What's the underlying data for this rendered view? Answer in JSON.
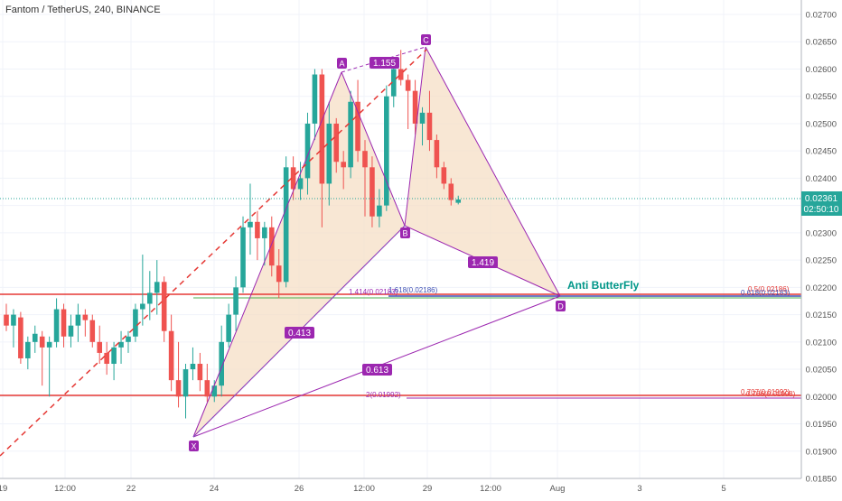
{
  "header": {
    "title": "Fantom / TetherUS, 240, BINANCE"
  },
  "price_axis": {
    "ticks": [
      "0.02700",
      "0.02650",
      "0.02600",
      "0.02550",
      "0.02500",
      "0.02450",
      "0.02400",
      "0.02350",
      "0.02300",
      "0.02250",
      "0.02200",
      "0.02150",
      "0.02100",
      "0.02050",
      "0.02000",
      "0.01950",
      "0.01900",
      "0.01850"
    ],
    "last_price": "0.02361",
    "countdown": "02:50:10"
  },
  "time_axis": {
    "ticks": [
      "19",
      "12:00",
      "22",
      "24",
      "26",
      "12:00",
      "29",
      "12:00",
      "Aug",
      "3",
      "5"
    ]
  },
  "pattern": {
    "name": "Anti ButterFly",
    "points": [
      "X",
      "A",
      "B",
      "C",
      "D"
    ],
    "ratios": [
      "1.155",
      "0.413",
      "0.613",
      "1.419"
    ]
  },
  "levels": {
    "fib_upper_left": "1.414(0.02183)",
    "fib_upper_mid": "1.618(0.02186)",
    "fib_upper_right_a": "0.5(0.02186)",
    "fib_upper_right_b": "0.618(0.02183)",
    "fib_lower_mid": "2(0.01992)",
    "fib_lower_right_a": "0.707(0.01992)",
    "fib_lower_right_b": "0.786(0.01998)"
  },
  "colors": {
    "up": "#26a69a",
    "down": "#ef5350",
    "pattern": "#9c27b0",
    "pattern_fill": "#f6dfc6",
    "level_red": "#e53935",
    "level_blue": "#3f51b5",
    "level_green": "#4caf50",
    "text_green": "#009688"
  },
  "chart_data": {
    "type": "candlestick",
    "title": "Fantom / TetherUS, 240, BINANCE",
    "ylim": [
      0.0184,
      0.0273
    ],
    "candles": [
      {
        "i": 0,
        "o": 0.0215,
        "h": 0.0217,
        "l": 0.0212,
        "c": 0.0213
      },
      {
        "i": 1,
        "o": 0.0213,
        "h": 0.0216,
        "l": 0.0209,
        "c": 0.0215
      },
      {
        "i": 2,
        "o": 0.02145,
        "h": 0.02155,
        "l": 0.0206,
        "c": 0.0207
      },
      {
        "i": 3,
        "o": 0.0207,
        "h": 0.0211,
        "l": 0.0205,
        "c": 0.021
      },
      {
        "i": 4,
        "o": 0.021,
        "h": 0.0213,
        "l": 0.0208,
        "c": 0.02115
      },
      {
        "i": 5,
        "o": 0.0211,
        "h": 0.0212,
        "l": 0.0202,
        "c": 0.0209
      },
      {
        "i": 6,
        "o": 0.0209,
        "h": 0.0211,
        "l": 0.02,
        "c": 0.021
      },
      {
        "i": 7,
        "o": 0.021,
        "h": 0.0218,
        "l": 0.0209,
        "c": 0.0216
      },
      {
        "i": 8,
        "o": 0.0216,
        "h": 0.0217,
        "l": 0.0209,
        "c": 0.0211
      },
      {
        "i": 9,
        "o": 0.0211,
        "h": 0.0215,
        "l": 0.0209,
        "c": 0.0213
      },
      {
        "i": 10,
        "o": 0.0213,
        "h": 0.0217,
        "l": 0.021,
        "c": 0.0215
      },
      {
        "i": 11,
        "o": 0.0215,
        "h": 0.0216,
        "l": 0.0211,
        "c": 0.0214
      },
      {
        "i": 12,
        "o": 0.0214,
        "h": 0.0215,
        "l": 0.0209,
        "c": 0.021
      },
      {
        "i": 13,
        "o": 0.021,
        "h": 0.0213,
        "l": 0.0206,
        "c": 0.0208
      },
      {
        "i": 14,
        "o": 0.0208,
        "h": 0.021,
        "l": 0.0204,
        "c": 0.0206
      },
      {
        "i": 15,
        "o": 0.0206,
        "h": 0.021,
        "l": 0.0203,
        "c": 0.0209
      },
      {
        "i": 16,
        "o": 0.0209,
        "h": 0.0212,
        "l": 0.0206,
        "c": 0.021
      },
      {
        "i": 17,
        "o": 0.021,
        "h": 0.0212,
        "l": 0.0208,
        "c": 0.0211
      },
      {
        "i": 18,
        "o": 0.0211,
        "h": 0.0217,
        "l": 0.021,
        "c": 0.0216
      },
      {
        "i": 19,
        "o": 0.0216,
        "h": 0.0226,
        "l": 0.0213,
        "c": 0.0217
      },
      {
        "i": 20,
        "o": 0.0217,
        "h": 0.0223,
        "l": 0.0214,
        "c": 0.0219
      },
      {
        "i": 21,
        "o": 0.0219,
        "h": 0.0225,
        "l": 0.0215,
        "c": 0.0221
      },
      {
        "i": 22,
        "o": 0.0221,
        "h": 0.0222,
        "l": 0.021,
        "c": 0.0212
      },
      {
        "i": 23,
        "o": 0.0212,
        "h": 0.0215,
        "l": 0.0201,
        "c": 0.0203
      },
      {
        "i": 24,
        "o": 0.0203,
        "h": 0.021,
        "l": 0.0198,
        "c": 0.02
      },
      {
        "i": 25,
        "o": 0.02,
        "h": 0.0206,
        "l": 0.0196,
        "c": 0.0205
      },
      {
        "i": 26,
        "o": 0.0205,
        "h": 0.0209,
        "l": 0.0203,
        "c": 0.0206
      },
      {
        "i": 27,
        "o": 0.0206,
        "h": 0.0208,
        "l": 0.0201,
        "c": 0.0203
      },
      {
        "i": 28,
        "o": 0.0203,
        "h": 0.0206,
        "l": 0.0199,
        "c": 0.02
      },
      {
        "i": 29,
        "o": 0.02,
        "h": 0.0203,
        "l": 0.0199,
        "c": 0.0202
      },
      {
        "i": 30,
        "o": 0.0202,
        "h": 0.0213,
        "l": 0.02,
        "c": 0.021
      },
      {
        "i": 31,
        "o": 0.021,
        "h": 0.0217,
        "l": 0.0209,
        "c": 0.0215
      },
      {
        "i": 32,
        "o": 0.0215,
        "h": 0.0222,
        "l": 0.0212,
        "c": 0.022
      },
      {
        "i": 33,
        "o": 0.022,
        "h": 0.0233,
        "l": 0.0219,
        "c": 0.0231
      },
      {
        "i": 34,
        "o": 0.0231,
        "h": 0.0239,
        "l": 0.0226,
        "c": 0.0232
      },
      {
        "i": 35,
        "o": 0.0232,
        "h": 0.0234,
        "l": 0.0225,
        "c": 0.0229
      },
      {
        "i": 36,
        "o": 0.0229,
        "h": 0.0232,
        "l": 0.0224,
        "c": 0.0231
      },
      {
        "i": 37,
        "o": 0.0231,
        "h": 0.0233,
        "l": 0.0222,
        "c": 0.0224
      },
      {
        "i": 38,
        "o": 0.0224,
        "h": 0.0227,
        "l": 0.0218,
        "c": 0.0221
      },
      {
        "i": 39,
        "o": 0.0221,
        "h": 0.0244,
        "l": 0.022,
        "c": 0.0242
      },
      {
        "i": 40,
        "o": 0.0242,
        "h": 0.0244,
        "l": 0.0236,
        "c": 0.0238
      },
      {
        "i": 41,
        "o": 0.0238,
        "h": 0.0243,
        "l": 0.0236,
        "c": 0.024
      },
      {
        "i": 42,
        "o": 0.024,
        "h": 0.0252,
        "l": 0.0237,
        "c": 0.025
      },
      {
        "i": 43,
        "o": 0.025,
        "h": 0.026,
        "l": 0.0247,
        "c": 0.0259
      },
      {
        "i": 44,
        "o": 0.0259,
        "h": 0.026,
        "l": 0.0231,
        "c": 0.0239
      },
      {
        "i": 45,
        "o": 0.0239,
        "h": 0.0254,
        "l": 0.0235,
        "c": 0.025
      },
      {
        "i": 46,
        "o": 0.025,
        "h": 0.0251,
        "l": 0.0241,
        "c": 0.0243
      },
      {
        "i": 47,
        "o": 0.0243,
        "h": 0.0245,
        "l": 0.0238,
        "c": 0.0242
      },
      {
        "i": 48,
        "o": 0.0242,
        "h": 0.0256,
        "l": 0.024,
        "c": 0.0254
      },
      {
        "i": 49,
        "o": 0.0254,
        "h": 0.0258,
        "l": 0.0243,
        "c": 0.0245
      },
      {
        "i": 50,
        "o": 0.0245,
        "h": 0.0247,
        "l": 0.0233,
        "c": 0.0242
      },
      {
        "i": 51,
        "o": 0.0242,
        "h": 0.0244,
        "l": 0.0231,
        "c": 0.0233
      },
      {
        "i": 52,
        "o": 0.0233,
        "h": 0.0238,
        "l": 0.0231,
        "c": 0.0235
      },
      {
        "i": 53,
        "o": 0.0235,
        "h": 0.0257,
        "l": 0.0234,
        "c": 0.0255
      },
      {
        "i": 54,
        "o": 0.0255,
        "h": 0.0261,
        "l": 0.0253,
        "c": 0.026
      },
      {
        "i": 55,
        "o": 0.026,
        "h": 0.02635,
        "l": 0.0257,
        "c": 0.0258
      },
      {
        "i": 56,
        "o": 0.0258,
        "h": 0.0259,
        "l": 0.0249,
        "c": 0.0256
      },
      {
        "i": 57,
        "o": 0.0256,
        "h": 0.0258,
        "l": 0.0248,
        "c": 0.025
      },
      {
        "i": 58,
        "o": 0.025,
        "h": 0.0253,
        "l": 0.0246,
        "c": 0.0252
      },
      {
        "i": 59,
        "o": 0.0252,
        "h": 0.0256,
        "l": 0.0245,
        "c": 0.0247
      },
      {
        "i": 60,
        "o": 0.0247,
        "h": 0.0248,
        "l": 0.024,
        "c": 0.0242
      },
      {
        "i": 61,
        "o": 0.0242,
        "h": 0.0243,
        "l": 0.0238,
        "c": 0.0239
      },
      {
        "i": 62,
        "o": 0.0239,
        "h": 0.024,
        "l": 0.0235,
        "c": 0.0236
      },
      {
        "i": 63,
        "o": 0.02355,
        "h": 0.02368,
        "l": 0.02352,
        "c": 0.02361
      }
    ]
  }
}
